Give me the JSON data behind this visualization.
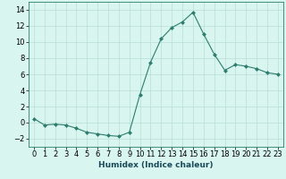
{
  "x": [
    0,
    1,
    2,
    3,
    4,
    5,
    6,
    7,
    8,
    9,
    10,
    11,
    12,
    13,
    14,
    15,
    16,
    17,
    18,
    19,
    20,
    21,
    22,
    23
  ],
  "y": [
    0.5,
    -0.3,
    -0.2,
    -0.3,
    -0.7,
    -1.2,
    -1.4,
    -1.6,
    -1.7,
    -1.2,
    3.5,
    7.5,
    10.4,
    11.8,
    12.5,
    13.7,
    11.0,
    8.5,
    6.5,
    7.2,
    7.0,
    6.7,
    6.2,
    6.0
  ],
  "xlabel": "Humidex (Indice chaleur)",
  "xlim": [
    -0.5,
    23.5
  ],
  "ylim": [
    -3,
    15
  ],
  "yticks": [
    -2,
    0,
    2,
    4,
    6,
    8,
    10,
    12,
    14
  ],
  "xticks": [
    0,
    1,
    2,
    3,
    4,
    5,
    6,
    7,
    8,
    9,
    10,
    11,
    12,
    13,
    14,
    15,
    16,
    17,
    18,
    19,
    20,
    21,
    22,
    23
  ],
  "line_color": "#2e7d6e",
  "marker": "D",
  "marker_size": 2.0,
  "bg_color": "#d8f5f0",
  "grid_color": "#b8ddd8",
  "label_fontsize": 6.5,
  "tick_fontsize": 6
}
